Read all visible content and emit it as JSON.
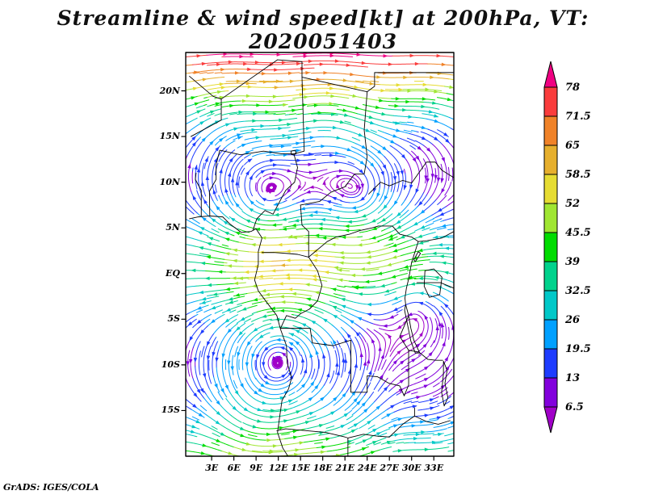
{
  "title": "Streamline & wind speed[kt] at 200hPa, VT: 2020051403",
  "credit": "GrADS: IGES/COLA",
  "chart_data": {
    "type": "streamline",
    "title": "Streamline & wind speed[kt] at 200hPa, VT: 2020051403",
    "variable": "wind speed",
    "unit": "kt",
    "pressure_level": "200hPa",
    "valid_time": "2020051403",
    "x_axis": {
      "tick_labels": [
        "3E",
        "6E",
        "9E",
        "12E",
        "15E",
        "18E",
        "21E",
        "24E",
        "27E",
        "30E",
        "33E"
      ],
      "tick_values_deg_east": [
        3,
        6,
        9,
        12,
        15,
        18,
        21,
        24,
        27,
        30,
        33
      ],
      "range_deg_east": [
        -0.5,
        35.7
      ]
    },
    "y_axis": {
      "tick_labels": [
        "20N",
        "15N",
        "10N",
        "5N",
        "EQ",
        "5S",
        "10S",
        "15S"
      ],
      "tick_values_deg_north": [
        20,
        15,
        10,
        5,
        0,
        -5,
        -10,
        -15
      ],
      "range_deg_north": [
        -20,
        24.2
      ]
    },
    "colorbar": {
      "unit": "kt",
      "levels": [
        6.5,
        13,
        19.5,
        26,
        32.5,
        39,
        45.5,
        52,
        58.5,
        65,
        71.5,
        78
      ],
      "level_labels": [
        "6.5",
        "13",
        "19.5",
        "26",
        "32.5",
        "39",
        "45.5",
        "52",
        "58.5",
        "65",
        "71.5",
        "78"
      ],
      "colors": [
        "#A000C8",
        "#8200DC",
        "#1E3CFF",
        "#00A0FF",
        "#00C8C8",
        "#00D28C",
        "#00DC00",
        "#A0E632",
        "#E6DC32",
        "#E6AF2D",
        "#F08228",
        "#FA3C3C",
        "#F00082"
      ]
    },
    "grid": false,
    "legend_position": "right-colorbar"
  }
}
